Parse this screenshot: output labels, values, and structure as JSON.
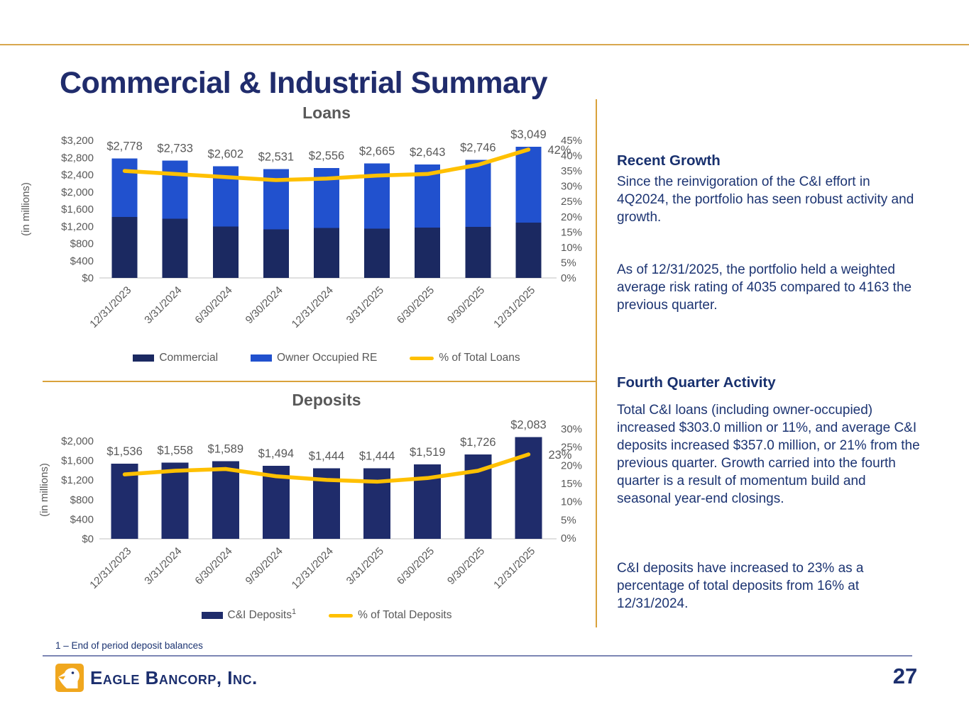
{
  "slide": {
    "title": "Commercial & Industrial Summary",
    "page_number": "27",
    "footnote": "1 – End of period deposit balances",
    "logo_text": "Eagle Bancorp, Inc."
  },
  "colors": {
    "title_navy": "#202C6C",
    "body_text_navy": "#1C3472",
    "bar_commercial": "#1B2961",
    "bar_owner_occupied_re": "#2151CE",
    "bar_ci_deposits": "#1F2C6B",
    "percent_line_gold": "#FFC000",
    "divider_gold": "#D9A23B",
    "chart_text_gray": "#595959"
  },
  "right_panel": {
    "recent_growth": {
      "heading": "Recent Growth",
      "p1": "Since the reinvigoration of the C&I effort in 4Q2024, the portfolio has seen robust activity and growth.",
      "p2": "As of 12/31/2025, the portfolio held a weighted average risk rating of 4035 compared to 4163 the previous quarter."
    },
    "fourth_quarter": {
      "heading": "Fourth Quarter Activity",
      "p1": "Total C&I loans (including owner-occupied) increased $303.0 million or 11%, and average C&I deposits increased $357.0 million, or 21% from the previous quarter. Growth carried into the fourth quarter is a result of momentum build and seasonal year-end closings.",
      "p2": "C&I deposits have increased to 23% as a percentage of total deposits from 16% at 12/31/2024."
    }
  },
  "chart_data": [
    {
      "type": "bar+line",
      "title": "Loans",
      "ylabel": "(in millions)",
      "stacked": true,
      "legend_position": "bottom",
      "categories": [
        "12/31/2023",
        "3/31/2024",
        "6/30/2024",
        "9/30/2024",
        "12/31/2024",
        "3/31/2025",
        "6/30/2025",
        "9/30/2025",
        "12/31/2025"
      ],
      "series": [
        {
          "name": "Commercial",
          "type": "bar",
          "color": "#1B2961",
          "values": [
            1420,
            1380,
            1200,
            1130,
            1160,
            1150,
            1170,
            1190,
            1290
          ]
        },
        {
          "name": "Owner Occupied RE",
          "type": "bar",
          "color": "#2151CE",
          "values": [
            1358,
            1353,
            1402,
            1401,
            1396,
            1515,
            1473,
            1556,
            1759
          ]
        },
        {
          "name": "% of Total Loans",
          "type": "line",
          "axis": "right",
          "color": "#FFC000",
          "values": [
            35,
            34,
            33,
            32,
            32.5,
            33.5,
            34,
            37,
            42
          ]
        }
      ],
      "totals": [
        2778,
        2733,
        2602,
        2531,
        2556,
        2665,
        2643,
        2746,
        3049
      ],
      "value_labels": [
        "$2,778",
        "$2,733",
        "$2,602",
        "$2,531",
        "$2,556",
        "$2,665",
        "$2,643",
        "$2,746",
        "$3,049"
      ],
      "end_label": "42%",
      "left_axis": {
        "min": 0,
        "max": 3200,
        "step": 400,
        "tick_labels": [
          "$3,200",
          "$2,800",
          "$2,400",
          "$2,000",
          "$1,600",
          "$1,200",
          "$800",
          "$400",
          "$0"
        ]
      },
      "right_axis": {
        "min": 0,
        "max": 45,
        "step": 5,
        "tick_labels": [
          "45%",
          "40%",
          "35%",
          "30%",
          "25%",
          "20%",
          "15%",
          "10%",
          "5%",
          "0%"
        ]
      }
    },
    {
      "type": "bar+line",
      "title": "Deposits",
      "ylabel": "(in millions)",
      "stacked": false,
      "legend_position": "bottom",
      "categories": [
        "12/31/2023",
        "3/31/2024",
        "6/30/2024",
        "9/30/2024",
        "12/31/2024",
        "3/31/2025",
        "6/30/2025",
        "9/30/2025",
        "12/31/2025"
      ],
      "series": [
        {
          "name": "C&I Deposits",
          "superscript": "1",
          "type": "bar",
          "color": "#1F2C6B",
          "values": [
            1536,
            1558,
            1589,
            1494,
            1444,
            1444,
            1519,
            1726,
            2083
          ]
        },
        {
          "name": "% of Total Deposits",
          "type": "line",
          "axis": "right",
          "color": "#FFC000",
          "values": [
            17.5,
            18.5,
            19,
            17,
            16,
            15.5,
            16.5,
            18.5,
            23
          ]
        }
      ],
      "value_labels": [
        "$1,536",
        "$1,558",
        "$1,589",
        "$1,494",
        "$1,444",
        "$1,444",
        "$1,519",
        "$1,726",
        "$2,083"
      ],
      "end_label": "23%",
      "left_axis": {
        "min": 0,
        "max": 2000,
        "step": 400,
        "tick_labels": [
          "$2,000",
          "$1,600",
          "$1,200",
          "$800",
          "$400",
          "$0"
        ]
      },
      "right_axis": {
        "min": 0,
        "max": 30,
        "step": 5,
        "tick_labels": [
          "30%",
          "25%",
          "20%",
          "15%",
          "10%",
          "5%",
          "0%"
        ]
      }
    }
  ]
}
